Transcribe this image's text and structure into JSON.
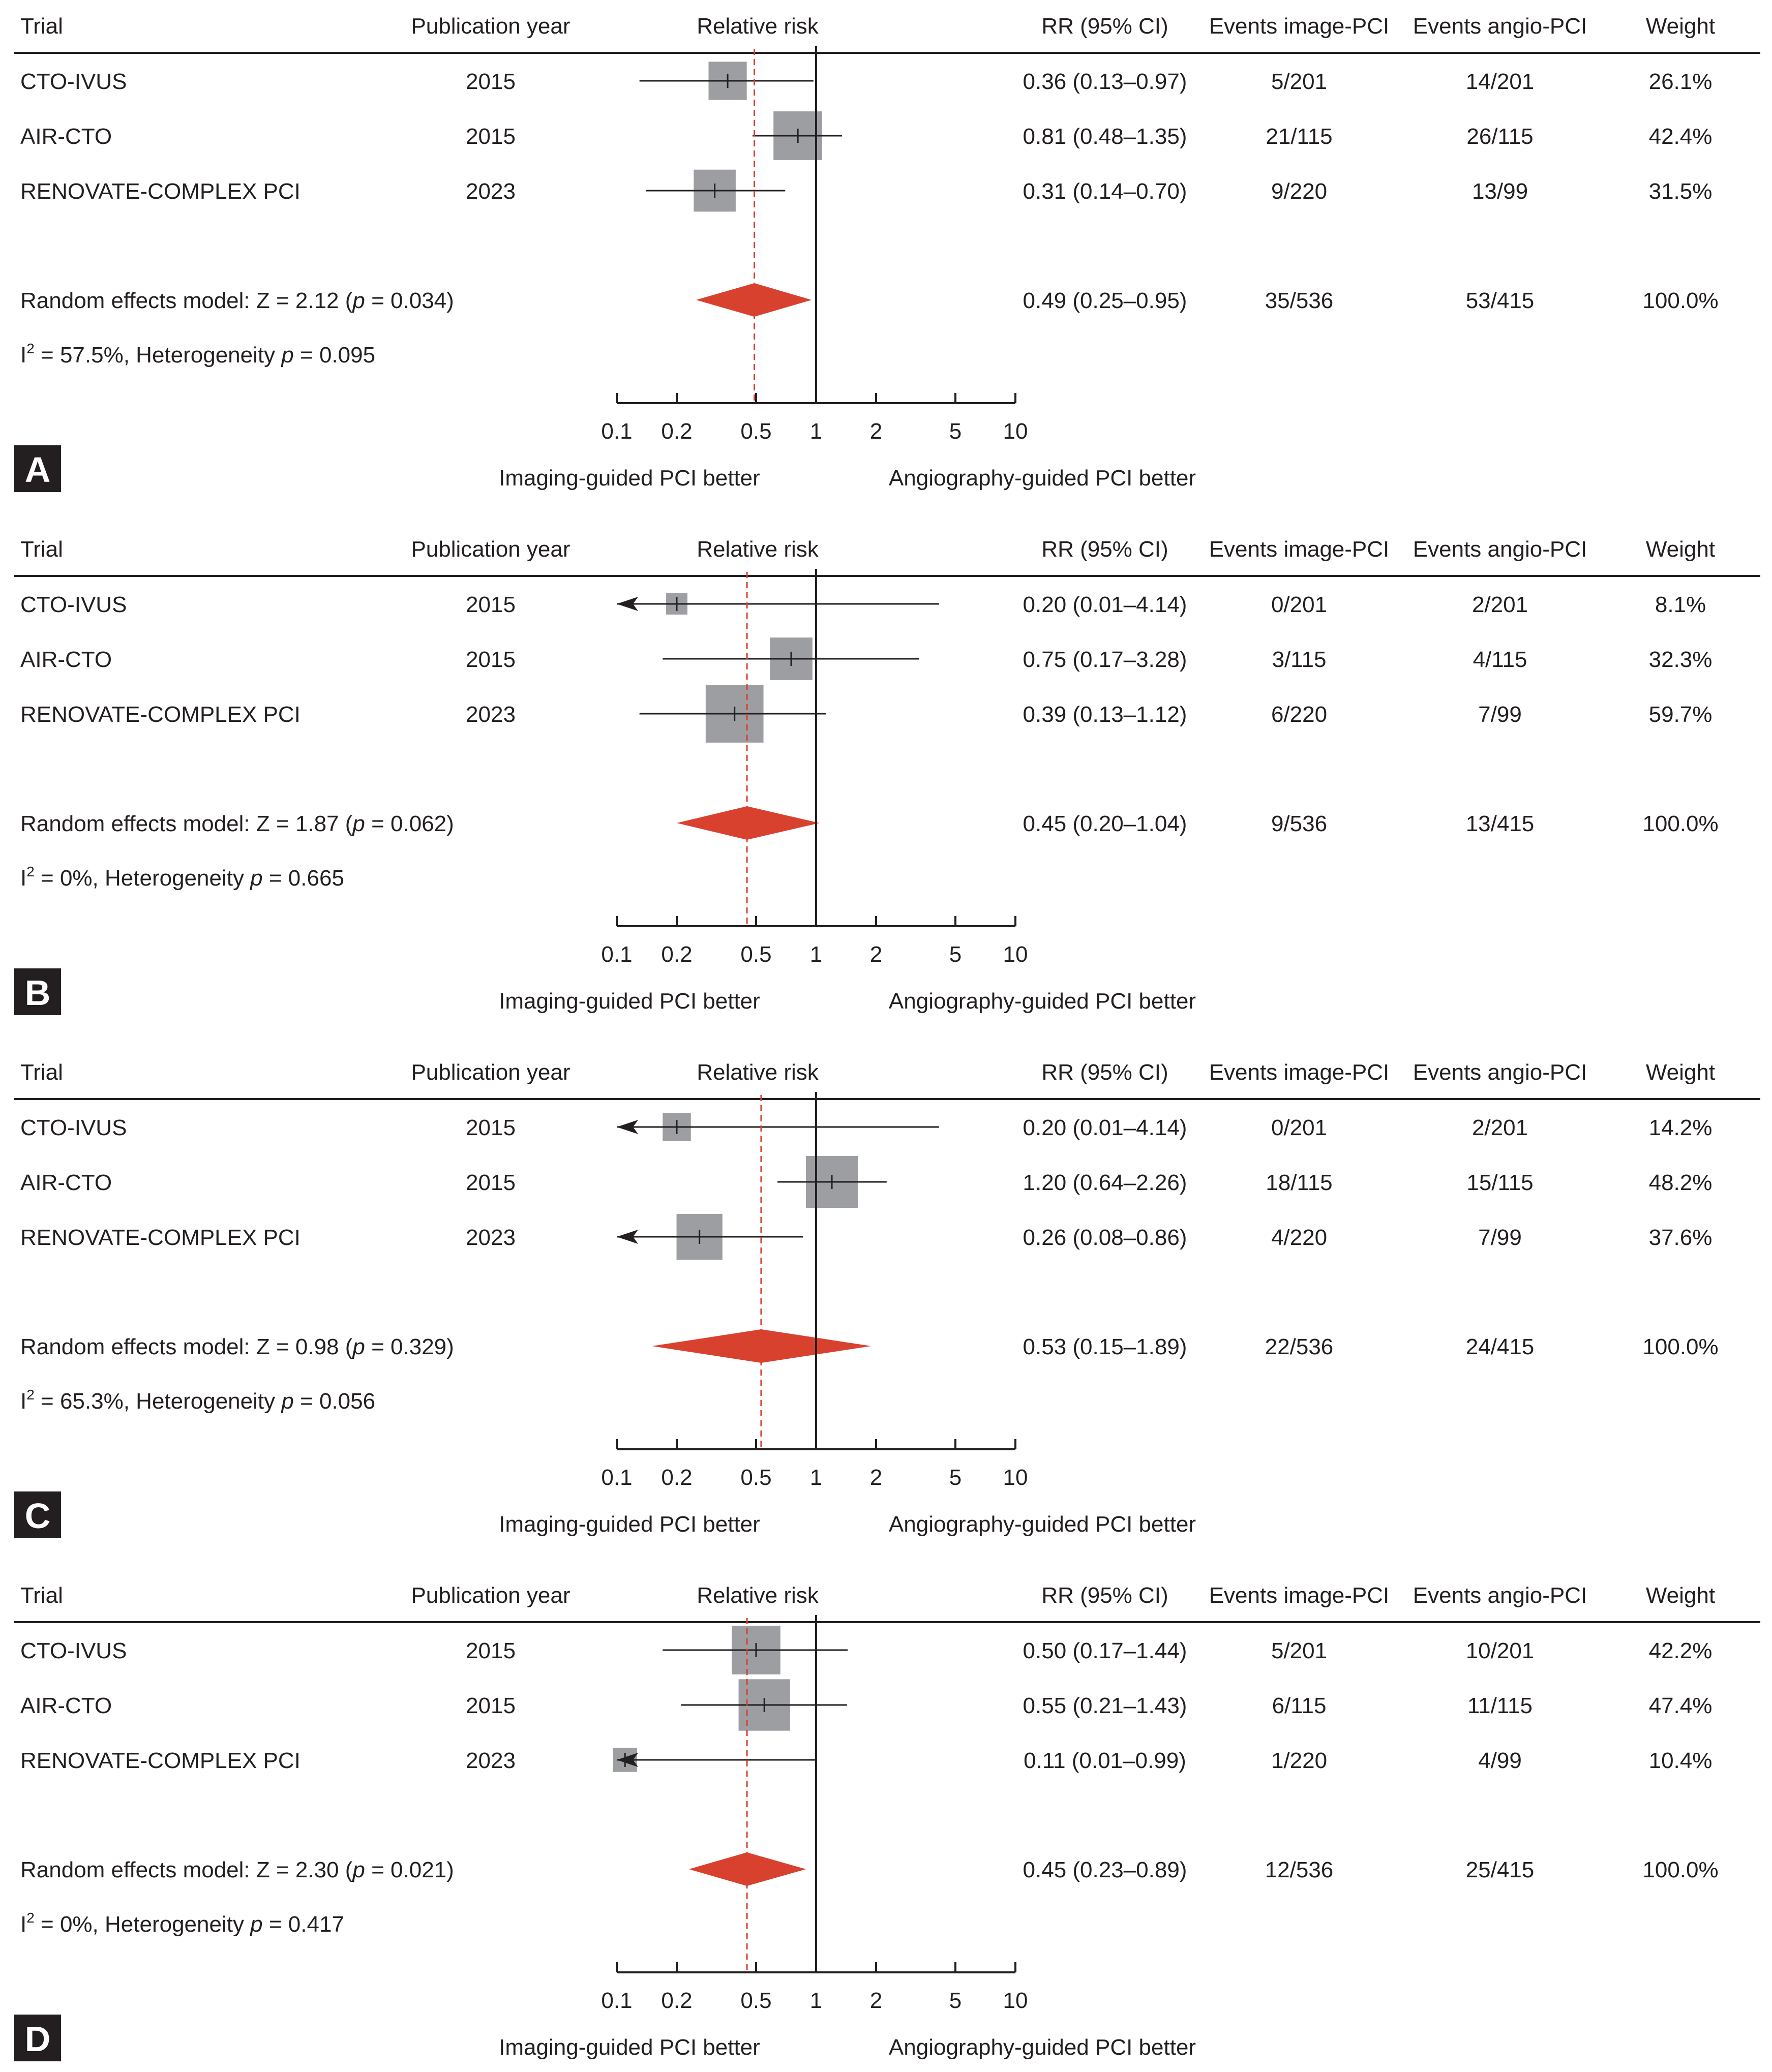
{
  "columns": {
    "trial": "Trial",
    "year": "Publication year",
    "plot": "Relative risk",
    "rr": "RR (95% CI)",
    "events_image": "Events image-PCI",
    "events_angio": "Events angio-PCI",
    "weight": "Weight"
  },
  "axis": {
    "ticks": [
      0.1,
      0.2,
      0.5,
      1,
      2,
      5,
      10
    ],
    "tick_labels": [
      "0.1",
      "0.2",
      "0.5",
      "1",
      "2",
      "5",
      "10"
    ],
    "left_label": "Imaging-guided PCI better",
    "right_label": "Angiography-guided PCI better"
  },
  "colors": {
    "square": "#9d9ea2",
    "diamond": "#d9412f",
    "dashed": "#d9412f",
    "line": "#231f20",
    "badge": "#231f20"
  },
  "chart_data": [
    {
      "type": "forest",
      "panel": "A",
      "xlim": [
        0.1,
        10
      ],
      "xscale": "log",
      "studies": [
        {
          "trial": "CTO-IVUS",
          "year": "2015",
          "rr": 0.36,
          "lo": 0.13,
          "hi": 0.97,
          "rr_text": "0.36 (0.13–0.97)",
          "events_image": "5/201",
          "events_angio": "14/201",
          "weight": "26.1%",
          "weight_value": 26.1
        },
        {
          "trial": "AIR-CTO",
          "year": "2015",
          "rr": 0.81,
          "lo": 0.48,
          "hi": 1.35,
          "rr_text": "0.81 (0.48–1.35)",
          "events_image": "21/115",
          "events_angio": "26/115",
          "weight": "42.4%",
          "weight_value": 42.4
        },
        {
          "trial": "RENOVATE-COMPLEX PCI",
          "year": "2023",
          "rr": 0.31,
          "lo": 0.14,
          "hi": 0.7,
          "rr_text": "0.31 (0.14–0.70)",
          "events_image": "9/220",
          "events_angio": "13/99",
          "weight": "31.5%",
          "weight_value": 31.5
        }
      ],
      "summary": {
        "model_prefix": "Random effects model: Z = 2.12 (",
        "p_symbol": "p",
        "model_suffix": " = 0.034)",
        "rr": 0.49,
        "lo": 0.25,
        "hi": 0.95,
        "rr_text": "0.49 (0.25–0.95)",
        "events_image": "35/536",
        "events_angio": "53/415",
        "weight": "100.0%"
      },
      "heterogeneity": {
        "i2_prefix": "I",
        "sup": "2",
        "i2_value": " = 57.5%, Heterogeneity ",
        "p_symbol": "p",
        "p_value": " = 0.095"
      }
    },
    {
      "type": "forest",
      "panel": "B",
      "xlim": [
        0.1,
        10
      ],
      "xscale": "log",
      "studies": [
        {
          "trial": "CTO-IVUS",
          "year": "2015",
          "rr": 0.2,
          "lo": 0.01,
          "hi": 4.14,
          "rr_text": "0.20 (0.01–4.14)",
          "events_image": "0/201",
          "events_angio": "2/201",
          "weight": "8.1%",
          "weight_value": 8.1
        },
        {
          "trial": "AIR-CTO",
          "year": "2015",
          "rr": 0.75,
          "lo": 0.17,
          "hi": 3.28,
          "rr_text": "0.75 (0.17–3.28)",
          "events_image": "3/115",
          "events_angio": "4/115",
          "weight": "32.3%",
          "weight_value": 32.3
        },
        {
          "trial": "RENOVATE-COMPLEX PCI",
          "year": "2023",
          "rr": 0.39,
          "lo": 0.13,
          "hi": 1.12,
          "rr_text": "0.39 (0.13–1.12)",
          "events_image": "6/220",
          "events_angio": "7/99",
          "weight": "59.7%",
          "weight_value": 59.7
        }
      ],
      "summary": {
        "model_prefix": "Random effects model: Z = 1.87 (",
        "p_symbol": "p",
        "model_suffix": " = 0.062)",
        "rr": 0.45,
        "lo": 0.2,
        "hi": 1.04,
        "rr_text": "0.45 (0.20–1.04)",
        "events_image": "9/536",
        "events_angio": "13/415",
        "weight": "100.0%"
      },
      "heterogeneity": {
        "i2_prefix": "I",
        "sup": "2",
        "i2_value": " = 0%, Heterogeneity ",
        "p_symbol": "p",
        "p_value": " = 0.665"
      }
    },
    {
      "type": "forest",
      "panel": "C",
      "xlim": [
        0.1,
        10
      ],
      "xscale": "log",
      "studies": [
        {
          "trial": "CTO-IVUS",
          "year": "2015",
          "rr": 0.2,
          "lo": 0.01,
          "hi": 4.14,
          "rr_text": "0.20 (0.01–4.14)",
          "events_image": "0/201",
          "events_angio": "2/201",
          "weight": "14.2%",
          "weight_value": 14.2
        },
        {
          "trial": "AIR-CTO",
          "year": "2015",
          "rr": 1.2,
          "lo": 0.64,
          "hi": 2.26,
          "rr_text": "1.20 (0.64–2.26)",
          "events_image": "18/115",
          "events_angio": "15/115",
          "weight": "48.2%",
          "weight_value": 48.2
        },
        {
          "trial": "RENOVATE-COMPLEX PCI",
          "year": "2023",
          "rr": 0.26,
          "lo": 0.08,
          "hi": 0.86,
          "rr_text": "0.26 (0.08–0.86)",
          "events_image": "4/220",
          "events_angio": "7/99",
          "weight": "37.6%",
          "weight_value": 37.6
        }
      ],
      "summary": {
        "model_prefix": "Random effects model: Z = 0.98 (",
        "p_symbol": "p",
        "model_suffix": " = 0.329)",
        "rr": 0.53,
        "lo": 0.15,
        "hi": 1.89,
        "rr_text": "0.53 (0.15–1.89)",
        "events_image": "22/536",
        "events_angio": "24/415",
        "weight": "100.0%"
      },
      "heterogeneity": {
        "i2_prefix": "I",
        "sup": "2",
        "i2_value": " = 65.3%, Heterogeneity ",
        "p_symbol": "p",
        "p_value": " = 0.056"
      }
    },
    {
      "type": "forest",
      "panel": "D",
      "xlim": [
        0.1,
        10
      ],
      "xscale": "log",
      "studies": [
        {
          "trial": "CTO-IVUS",
          "year": "2015",
          "rr": 0.5,
          "lo": 0.17,
          "hi": 1.44,
          "rr_text": "0.50 (0.17–1.44)",
          "events_image": "5/201",
          "events_angio": "10/201",
          "weight": "42.2%",
          "weight_value": 42.2
        },
        {
          "trial": "AIR-CTO",
          "year": "2015",
          "rr": 0.55,
          "lo": 0.21,
          "hi": 1.43,
          "rr_text": "0.55 (0.21–1.43)",
          "events_image": "6/115",
          "events_angio": "11/115",
          "weight": "47.4%",
          "weight_value": 47.4
        },
        {
          "trial": "RENOVATE-COMPLEX PCI",
          "year": "2023",
          "rr": 0.11,
          "lo": 0.01,
          "hi": 0.99,
          "rr_text": "0.11 (0.01–0.99)",
          "events_image": "1/220",
          "events_angio": "4/99",
          "weight": "10.4%",
          "weight_value": 10.4
        }
      ],
      "summary": {
        "model_prefix": "Random effects model: Z = 2.30 (",
        "p_symbol": "p",
        "model_suffix": " = 0.021)",
        "rr": 0.45,
        "lo": 0.23,
        "hi": 0.89,
        "rr_text": "0.45 (0.23–0.89)",
        "events_image": "12/536",
        "events_angio": "25/415",
        "weight": "100.0%"
      },
      "heterogeneity": {
        "i2_prefix": "I",
        "sup": "2",
        "i2_value": " = 0%, Heterogeneity ",
        "p_symbol": "p",
        "p_value": " = 0.417"
      }
    }
  ]
}
